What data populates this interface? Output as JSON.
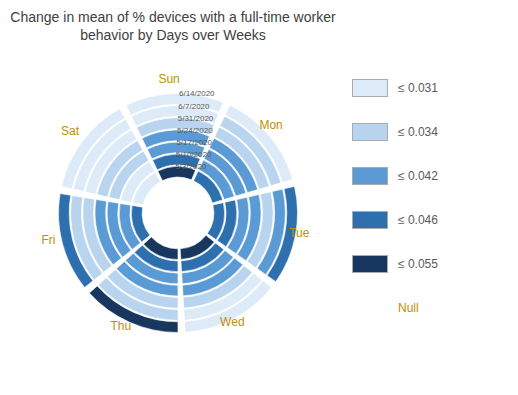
{
  "chart_data": {
    "type": "radial_heatmap",
    "title": "Change in mean of % devices with a full-time worker\nbehavior by Days over Weeks",
    "categories": [
      "Sun",
      "Mon",
      "Tue",
      "Wed",
      "Thu",
      "Fri",
      "Sat"
    ],
    "series": [
      {
        "name": "5/3/2020",
        "values": [
          "≤ 0.055",
          "≤ 0.046",
          "≤ 0.046",
          "≤ 0.055",
          "≤ 0.055",
          "≤ 0.046",
          "≤ 0.031"
        ]
      },
      {
        "name": "5/10/2020",
        "values": [
          "≤ 0.046",
          "≤ 0.042",
          "≤ 0.046",
          "≤ 0.046",
          "≤ 0.046",
          "≤ 0.042",
          "≤ 0.031"
        ]
      },
      {
        "name": "5/17/2020",
        "values": [
          "≤ 0.042",
          "≤ 0.042",
          "≤ 0.042",
          "≤ 0.042",
          "≤ 0.042",
          "≤ 0.042",
          "≤ 0.034"
        ]
      },
      {
        "name": "5/24/2020",
        "values": [
          "≤ 0.042",
          "≤ 0.042",
          "≤ 0.042",
          "≤ 0.042",
          "≤ 0.042",
          "≤ 0.042",
          "≤ 0.034"
        ]
      },
      {
        "name": "5/31/2020",
        "values": [
          "≤ 0.034",
          "≤ 0.034",
          "≤ 0.034",
          "≤ 0.034",
          "≤ 0.034",
          "≤ 0.034",
          "≤ 0.031"
        ]
      },
      {
        "name": "6/7/2020",
        "values": [
          "≤ 0.031",
          "≤ 0.034",
          "≤ 0.042",
          "≤ 0.031",
          "≤ 0.034",
          "≤ 0.034",
          "≤ 0.031"
        ]
      },
      {
        "name": "6/14/2020",
        "values": [
          "≤ 0.031",
          "≤ 0.031",
          "≤ 0.046",
          "≤ 0.031",
          "≤ 0.055",
          "≤ 0.046",
          "≤ 0.031"
        ]
      }
    ],
    "classes": [
      {
        "label": "≤ 0.031",
        "color": "#ddeaf7"
      },
      {
        "label": "≤ 0.034",
        "color": "#b8d4ee"
      },
      {
        "label": "≤ 0.042",
        "color": "#5b9bd5"
      },
      {
        "label": "≤ 0.046",
        "color": "#2e6fad"
      },
      {
        "label": "≤ 0.055",
        "color": "#17375e"
      },
      {
        "label": "Null",
        "color": null
      }
    ]
  }
}
